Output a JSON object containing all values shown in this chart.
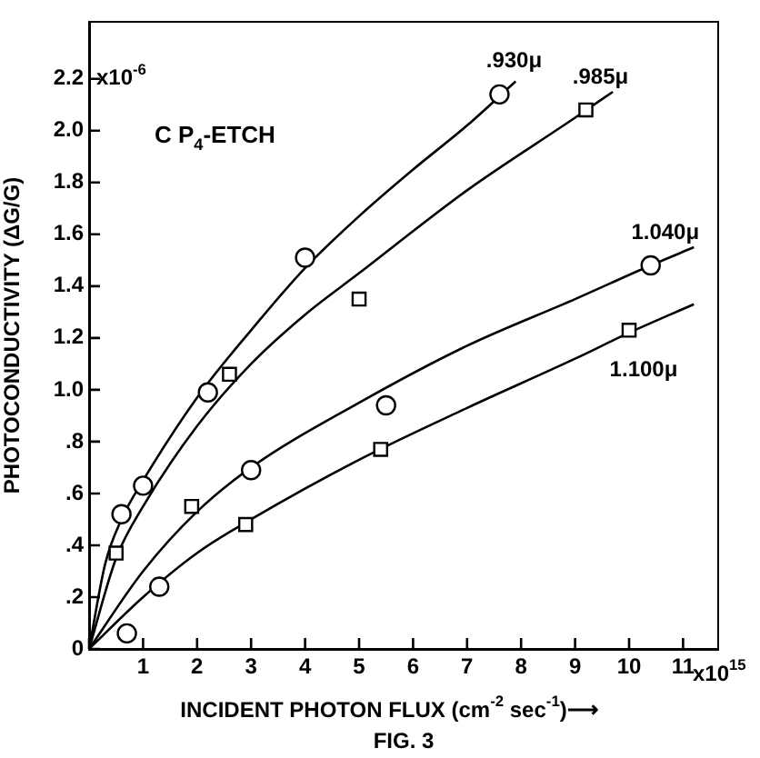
{
  "chart_data": {
    "type": "scatter",
    "xlabel": "INCIDENT PHOTON FLUX (cm$^{-2}$ sec$^{-1}$)⟶",
    "ylabel": "PHOTOCONDUCTIVITY (ΔG/G)",
    "annotations": [
      "x10$^{-6}$",
      "C P$_{4}$-ETCH",
      "x10$^{15}$",
      "FIG. 3"
    ],
    "xlim": [
      0,
      11.65
    ],
    "ylim": [
      0,
      2.42
    ],
    "xticks": [
      {
        "value": 0,
        "label": null
      },
      1,
      2,
      3,
      4,
      5,
      6,
      7,
      8,
      9,
      10,
      11
    ],
    "yticks": [
      0,
      {
        "value": 0.2,
        "label": ".2"
      },
      {
        "value": 0.4,
        "label": ".4"
      },
      {
        "value": 0.6,
        "label": ".6"
      },
      {
        "value": 0.8,
        "label": ".8"
      },
      {
        "value": 1.0,
        "label": "1.0"
      },
      {
        "value": 1.2,
        "label": "1.2"
      },
      {
        "value": 1.4,
        "label": "1.4"
      },
      {
        "value": 1.6,
        "label": "1.6"
      },
      {
        "value": 1.8,
        "label": "1.8"
      },
      {
        "value": 2.0,
        "label": "2.0"
      },
      {
        "value": 2.2,
        "label": "2.2"
      }
    ],
    "grid": false,
    "legend": false,
    "series": [
      {
        "name": ".930μ",
        "color": "#000000",
        "marker": "circle",
        "x": [
          0.6,
          1.0,
          2.2,
          4.0,
          7.6
        ],
        "values": [
          0.52,
          0.63,
          0.99,
          1.51,
          2.14
        ]
      },
      {
        "name": ".985μ",
        "color": "#000000",
        "marker": "square",
        "x": [
          0.5,
          1.9,
          2.6,
          5.0,
          9.2
        ],
        "values": [
          0.37,
          0.55,
          1.06,
          1.35,
          2.08
        ]
      },
      {
        "name": "1.040μ",
        "color": "#000000",
        "marker": "circle",
        "x": [
          0.7,
          1.3,
          3.0,
          5.5,
          10.4
        ],
        "values": [
          0.06,
          0.24,
          0.69,
          0.94,
          1.48
        ]
      },
      {
        "name": "1.100μ",
        "color": "#000000",
        "marker": "square",
        "x": [
          2.9,
          5.4,
          10.0
        ],
        "values": [
          0.48,
          0.77,
          1.23
        ]
      },
      {
        "type": "line",
        "color": "#000000",
        "marker": "none",
        "x": [
          0,
          0.3,
          0.6,
          1,
          2,
          3,
          4,
          5,
          6,
          7,
          7.9
        ],
        "values": [
          0,
          0.33,
          0.5,
          0.65,
          0.97,
          1.23,
          1.47,
          1.67,
          1.85,
          2.02,
          2.19
        ]
      },
      {
        "type": "line",
        "color": "#000000",
        "marker": "none",
        "x": [
          0,
          0.5,
          1,
          2,
          3,
          4,
          5,
          7,
          9,
          9.7
        ],
        "values": [
          0,
          0.35,
          0.55,
          0.86,
          1.1,
          1.29,
          1.45,
          1.77,
          2.05,
          2.15
        ]
      },
      {
        "type": "line",
        "color": "#000000",
        "marker": "none",
        "x": [
          0,
          1,
          2,
          3,
          5,
          7,
          9,
          10.4,
          11.2
        ],
        "values": [
          0,
          0.3,
          0.53,
          0.7,
          0.95,
          1.17,
          1.35,
          1.48,
          1.55
        ]
      },
      {
        "type": "line",
        "color": "#000000",
        "marker": "none",
        "x": [
          0,
          1,
          2,
          3,
          5,
          7,
          9,
          10,
          11.2
        ],
        "values": [
          0,
          0.2,
          0.37,
          0.5,
          0.73,
          0.93,
          1.12,
          1.22,
          1.33
        ]
      }
    ]
  }
}
